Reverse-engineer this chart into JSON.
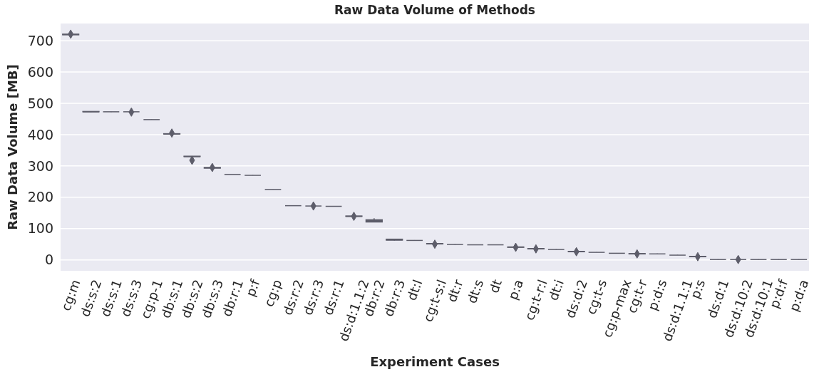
{
  "chart_data": {
    "type": "box",
    "title": "Raw Data Volume of Methods",
    "xlabel": "Experiment Cases",
    "ylabel": "Raw Data Volume [MB]",
    "categories": [
      "cg:m",
      "ds:s:2",
      "ds:s:1",
      "ds:s:3",
      "cg:p-1",
      "db:s:1",
      "db:s:2",
      "db:s:3",
      "db:r:1",
      "p:f",
      "cg:p",
      "ds:r:2",
      "ds:r:3",
      "ds:r:1",
      "ds:d:1.1:2",
      "db:r:2",
      "db:r:3",
      "dt:l",
      "cg:t-s:l",
      "dt:r",
      "dt:s",
      "dt",
      "p:a",
      "cg:t-r:l",
      "dt:i",
      "ds:d:2",
      "cg:t-s",
      "cg:p-max",
      "cg:t-r",
      "p:d:s",
      "ds:d:1.1:1",
      "p:s",
      "ds:d:1",
      "ds:d:10:2",
      "ds:d:10:1",
      "p:d:f",
      "p:d:a"
    ],
    "boxes": [
      {
        "low": 718,
        "q1": 719,
        "median": 720,
        "q3": 721,
        "high": 722,
        "outliers": [
          721
        ]
      },
      {
        "low": 472,
        "q1": 473,
        "median": 473,
        "q3": 474,
        "high": 474
      },
      {
        "low": 472,
        "q1": 473,
        "median": 473,
        "q3": 473,
        "high": 473
      },
      {
        "low": 472,
        "q1": 473,
        "median": 473,
        "q3": 473,
        "high": 474,
        "outliers": [
          472
        ]
      },
      {
        "low": 448,
        "q1": 448,
        "median": 448,
        "q3": 448,
        "high": 449
      },
      {
        "low": 401,
        "q1": 402,
        "median": 402,
        "q3": 403,
        "high": 403,
        "outliers": [
          405
        ]
      },
      {
        "low": 330,
        "q1": 330,
        "median": 330,
        "q3": 331,
        "high": 331,
        "outliers": [
          318
        ]
      },
      {
        "low": 293,
        "q1": 293,
        "median": 294,
        "q3": 295,
        "high": 295,
        "outliers": [
          295
        ]
      },
      {
        "low": 273,
        "q1": 273,
        "median": 273,
        "q3": 273,
        "high": 274
      },
      {
        "low": 270,
        "q1": 270,
        "median": 270,
        "q3": 270,
        "high": 271
      },
      {
        "low": 225,
        "q1": 225,
        "median": 225,
        "q3": 225,
        "high": 226
      },
      {
        "low": 173,
        "q1": 173,
        "median": 173,
        "q3": 173,
        "high": 174
      },
      {
        "low": 172,
        "q1": 172,
        "median": 172,
        "q3": 172,
        "high": 173,
        "outliers": [
          172
        ]
      },
      {
        "low": 171,
        "q1": 171,
        "median": 171,
        "q3": 171,
        "high": 172
      },
      {
        "low": 138,
        "q1": 139,
        "median": 139,
        "q3": 140,
        "high": 140,
        "outliers": [
          139
        ]
      },
      {
        "low": 120,
        "q1": 121,
        "median": 124,
        "q3": 128,
        "high": 133
      },
      {
        "low": 62,
        "q1": 63,
        "median": 64,
        "q3": 66,
        "high": 66
      },
      {
        "low": 62,
        "q1": 62,
        "median": 62,
        "q3": 62,
        "high": 63
      },
      {
        "low": 51,
        "q1": 51,
        "median": 52,
        "q3": 52,
        "high": 53,
        "outliers": [
          50
        ]
      },
      {
        "low": 49,
        "q1": 49,
        "median": 49,
        "q3": 49,
        "high": 50
      },
      {
        "low": 48,
        "q1": 48,
        "median": 48,
        "q3": 48,
        "high": 49
      },
      {
        "low": 48,
        "q1": 48,
        "median": 48,
        "q3": 48,
        "high": 49
      },
      {
        "low": 40,
        "q1": 40,
        "median": 41,
        "q3": 41,
        "high": 41,
        "outliers": [
          40
        ]
      },
      {
        "low": 35,
        "q1": 35,
        "median": 36,
        "q3": 36,
        "high": 36,
        "outliers": [
          35
        ]
      },
      {
        "low": 33,
        "q1": 33,
        "median": 33,
        "q3": 33,
        "high": 34
      },
      {
        "low": 26,
        "q1": 26,
        "median": 26,
        "q3": 27,
        "high": 27,
        "outliers": [
          26
        ]
      },
      {
        "low": 24,
        "q1": 24,
        "median": 24,
        "q3": 24,
        "high": 25
      },
      {
        "low": 21,
        "q1": 21,
        "median": 21,
        "q3": 21,
        "high": 22
      },
      {
        "low": 19,
        "q1": 19,
        "median": 19,
        "q3": 20,
        "high": 20,
        "outliers": [
          19
        ]
      },
      {
        "low": 19,
        "q1": 19,
        "median": 19,
        "q3": 19,
        "high": 20
      },
      {
        "low": 15,
        "q1": 15,
        "median": 15,
        "q3": 15,
        "high": 16
      },
      {
        "low": 10,
        "q1": 10,
        "median": 10,
        "q3": 11,
        "high": 11,
        "outliers": [
          10
        ]
      },
      {
        "low": 1,
        "q1": 1,
        "median": 1,
        "q3": 1,
        "high": 2
      },
      {
        "low": 1,
        "q1": 1,
        "median": 1,
        "q3": 1,
        "high": 2,
        "outliers": [
          1
        ]
      },
      {
        "low": 1,
        "q1": 1,
        "median": 1,
        "q3": 1,
        "high": 2
      },
      {
        "low": 1,
        "q1": 1,
        "median": 1,
        "q3": 1,
        "high": 2
      },
      {
        "low": 1,
        "q1": 1,
        "median": 1,
        "q3": 1,
        "high": 2
      }
    ],
    "color": "#5d5d6a",
    "ylim": [
      -35,
      755
    ],
    "yticks": [
      0,
      100,
      200,
      300,
      400,
      500,
      600,
      700
    ],
    "grid": "y"
  }
}
